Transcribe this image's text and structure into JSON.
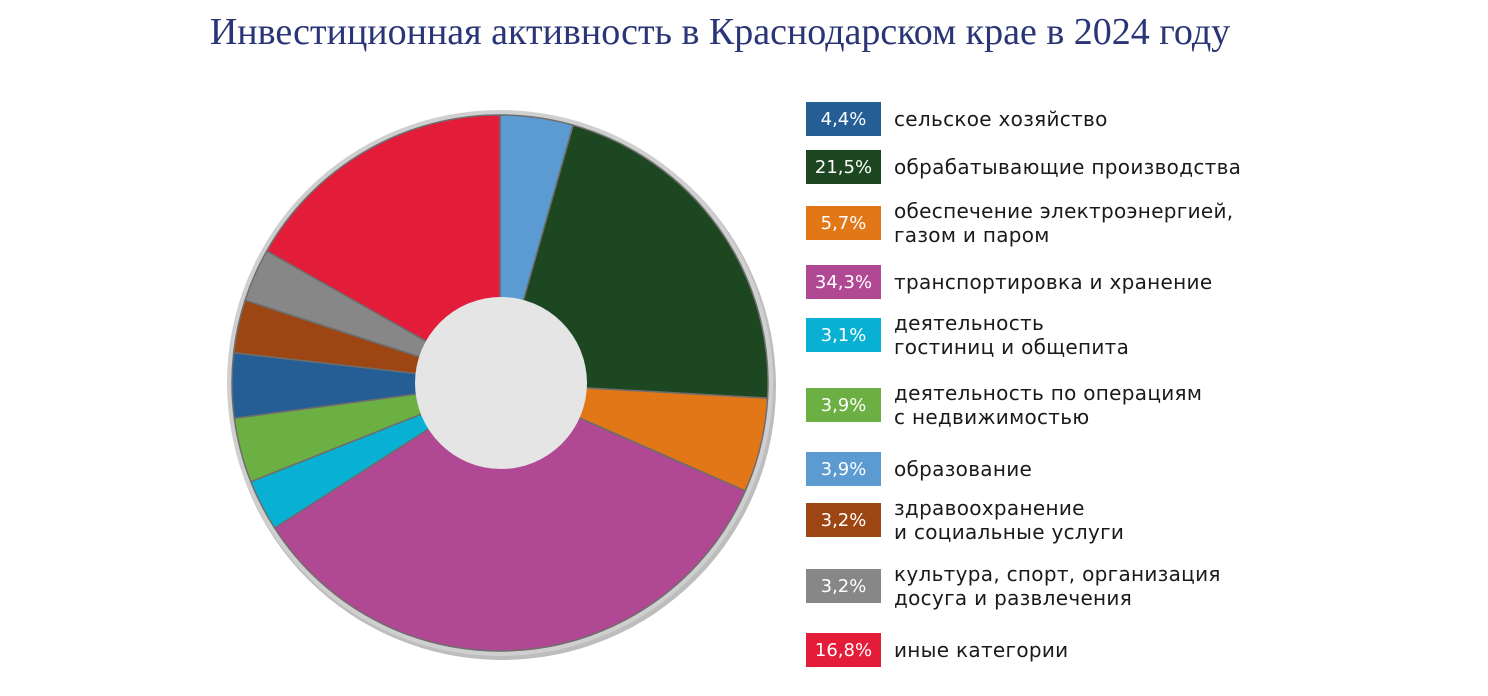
{
  "chart_data": {
    "type": "pie",
    "title": "Инвестиционная активность в Краснодарском крае в 2024 году",
    "donut": true,
    "legend_position": "right",
    "legend": [
      {
        "value_label": "4,4%",
        "label": "сельское хозяйство",
        "color": "#245e95"
      },
      {
        "value_label": "21,5%",
        "label": "обрабатывающие производства",
        "color": "#1d4720"
      },
      {
        "value_label": "5,7%",
        "label": "обеспечение электроэнергией,\nгазом и паром",
        "color": "#e27718"
      },
      {
        "value_label": "34,3%",
        "label": "транспортировка и хранение",
        "color": "#b04893"
      },
      {
        "value_label": "3,1%",
        "label": "деятельность\nгостиниц и общепита",
        "color": "#08b1d3"
      },
      {
        "value_label": "3,9%",
        "label": "деятельность по операциям\nс недвижимостью",
        "color": "#6cb043"
      },
      {
        "value_label": "3,9%",
        "label": "образование",
        "color": "#5b9bd2"
      },
      {
        "value_label": "3,2%",
        "label": "здравоохранение\nи социальные услуги",
        "color": "#9e4514"
      },
      {
        "value_label": "3,2%",
        "label": "культура, спорт, организация\nдосуга и развлечения",
        "color": "#878787"
      },
      {
        "value_label": "16,8%",
        "label": "иные категории",
        "color": "#e31c39"
      }
    ],
    "slices": [
      {
        "value": 4.4,
        "color": "#5b9bd2"
      },
      {
        "value": 21.5,
        "color": "#1d4720"
      },
      {
        "value": 5.7,
        "color": "#e27718"
      },
      {
        "value": 34.3,
        "color": "#b04893"
      },
      {
        "value": 3.1,
        "color": "#08b1d3"
      },
      {
        "value": 3.9,
        "color": "#6cb043"
      },
      {
        "value": 3.9,
        "color": "#245e95"
      },
      {
        "value": 3.2,
        "color": "#9e4514"
      },
      {
        "value": 3.2,
        "color": "#878787"
      },
      {
        "value": 16.8,
        "color": "#e31c39"
      }
    ]
  }
}
